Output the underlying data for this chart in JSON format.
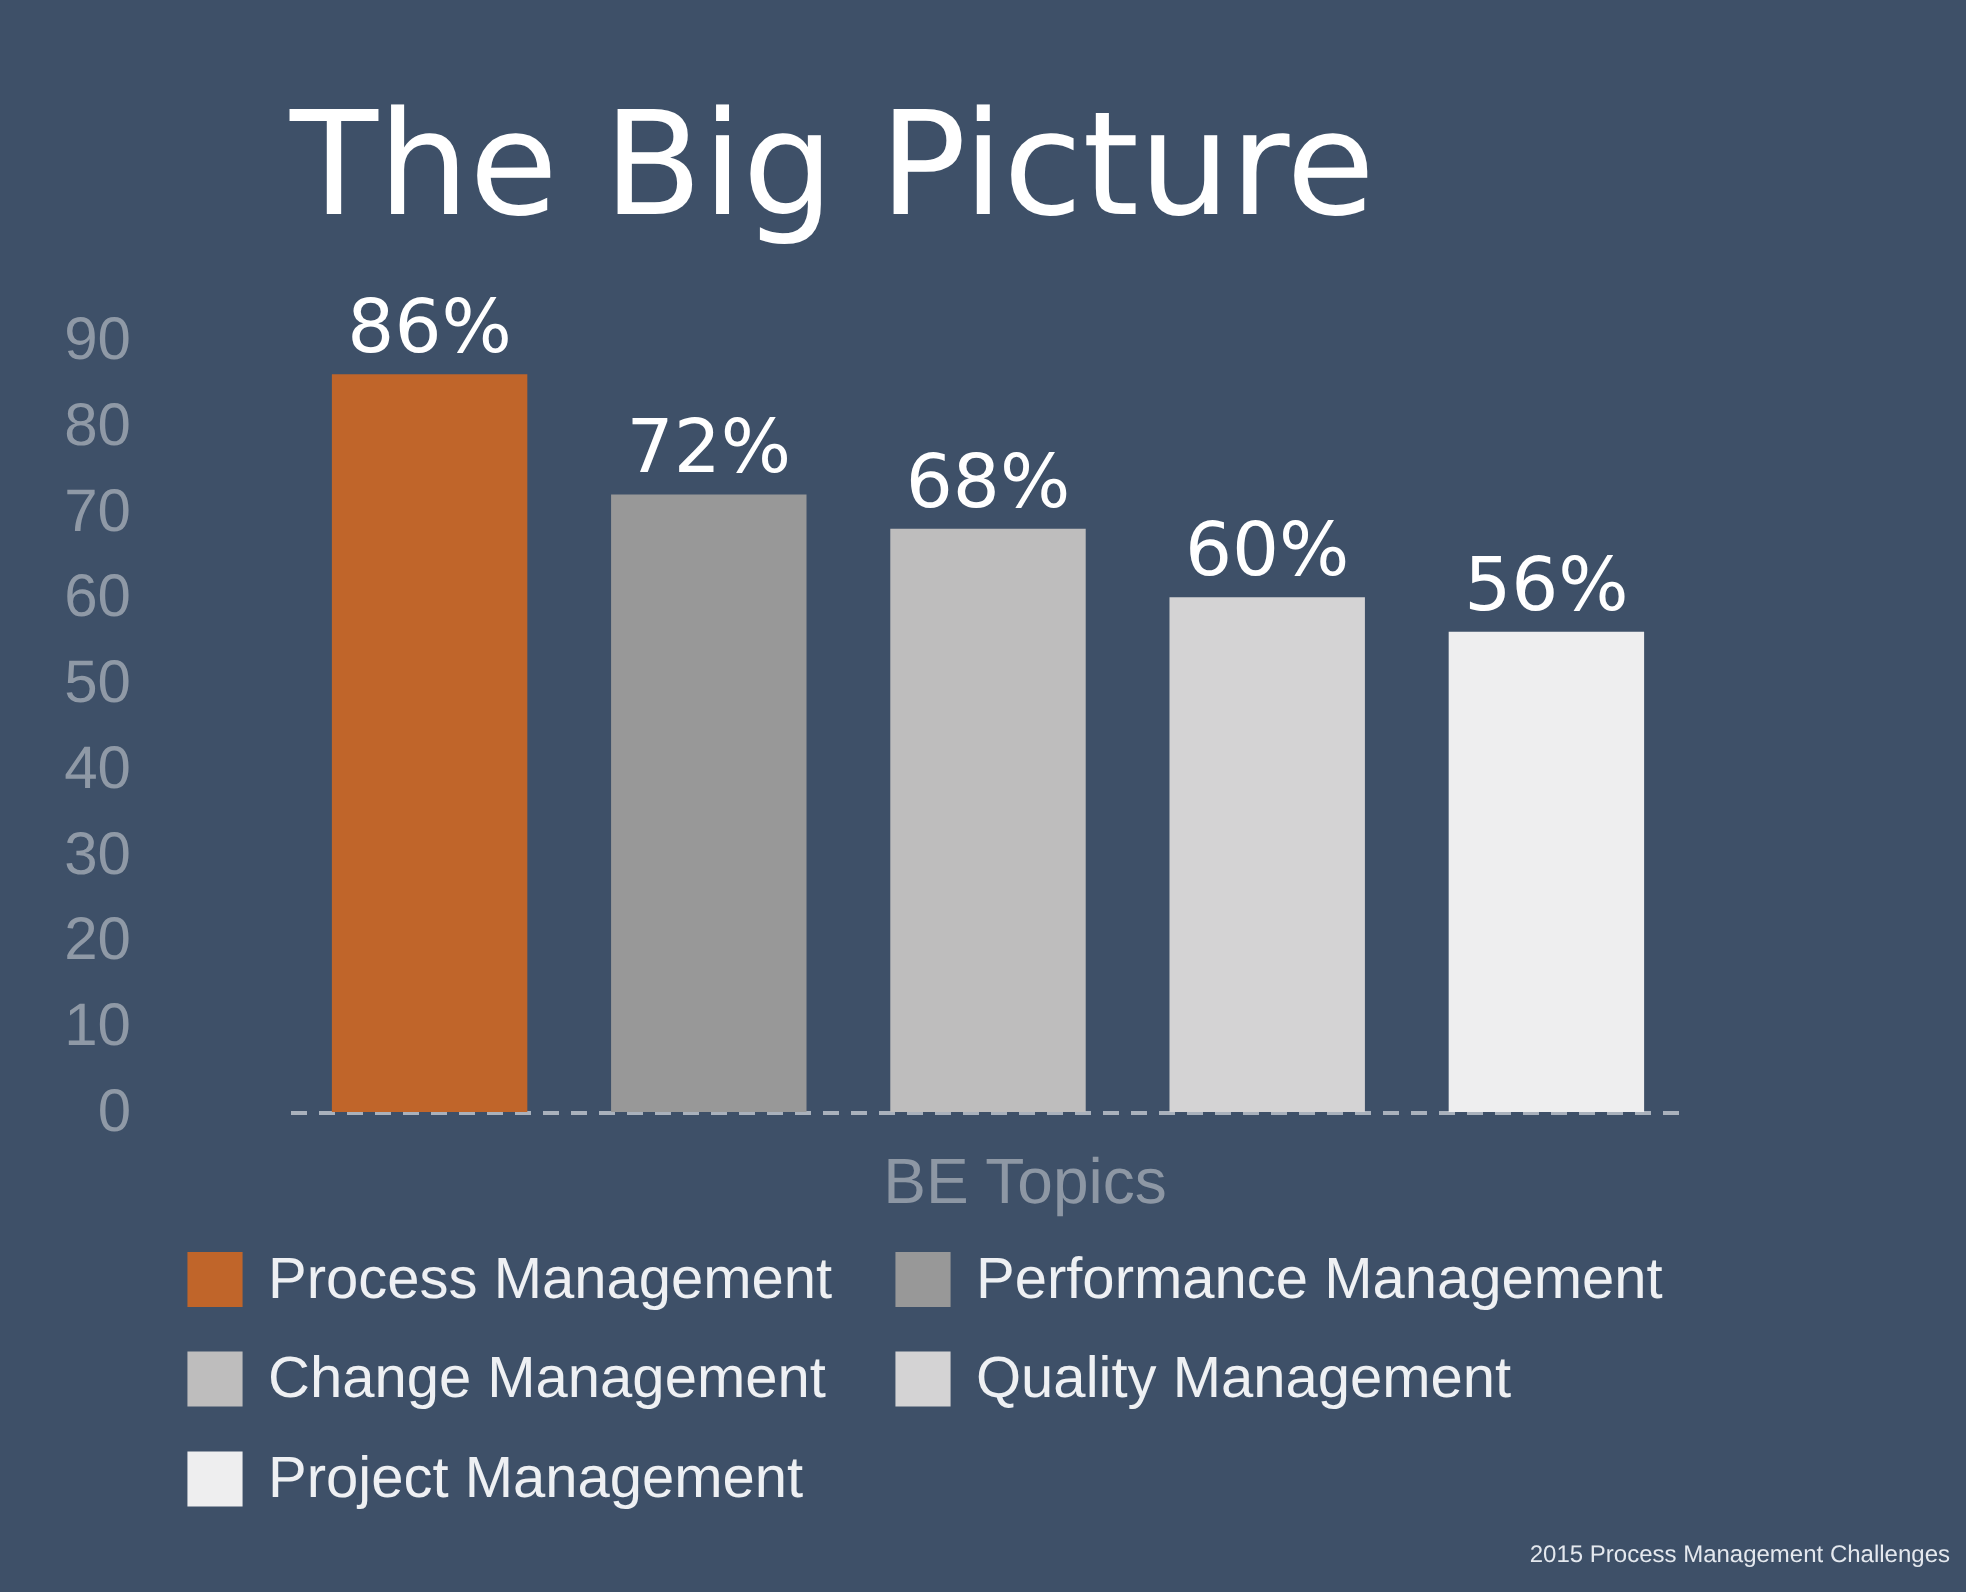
{
  "chart_data": {
    "type": "bar",
    "title": "The Big Picture",
    "xlabel": "BE Topics",
    "categories": [
      null,
      null,
      null,
      null,
      null
    ],
    "series": [
      {
        "name": "Process Management",
        "color": "#c0652a",
        "values": [
          86,
          null,
          null,
          null,
          null
        ],
        "value_labels": [
          "86%",
          null,
          null,
          null,
          null
        ]
      },
      {
        "name": "Performance Management",
        "color": "#989898",
        "values": [
          null,
          72,
          null,
          null,
          null
        ],
        "value_labels": [
          null,
          "72%",
          null,
          null,
          null
        ]
      },
      {
        "name": "Change Management",
        "color": "#bebdbd",
        "values": [
          null,
          null,
          68,
          null,
          null
        ],
        "value_labels": [
          null,
          null,
          "68%",
          null,
          null
        ]
      },
      {
        "name": "Quality Management",
        "color": "#d4d3d4",
        "values": [
          null,
          null,
          null,
          60,
          null
        ],
        "value_labels": [
          null,
          null,
          null,
          "60%",
          null
        ]
      },
      {
        "name": "Project Management",
        "color": "#eeeeef",
        "values": [
          null,
          null,
          null,
          null,
          56
        ],
        "value_labels": [
          null,
          null,
          null,
          null,
          "56%"
        ]
      }
    ],
    "ylim": [
      0,
      90
    ],
    "yticks": [
      0,
      10,
      20,
      30,
      40,
      50,
      60,
      70,
      80,
      90
    ],
    "legend": "bottom",
    "annotations": [
      "2015 Process Management Challenges"
    ]
  }
}
